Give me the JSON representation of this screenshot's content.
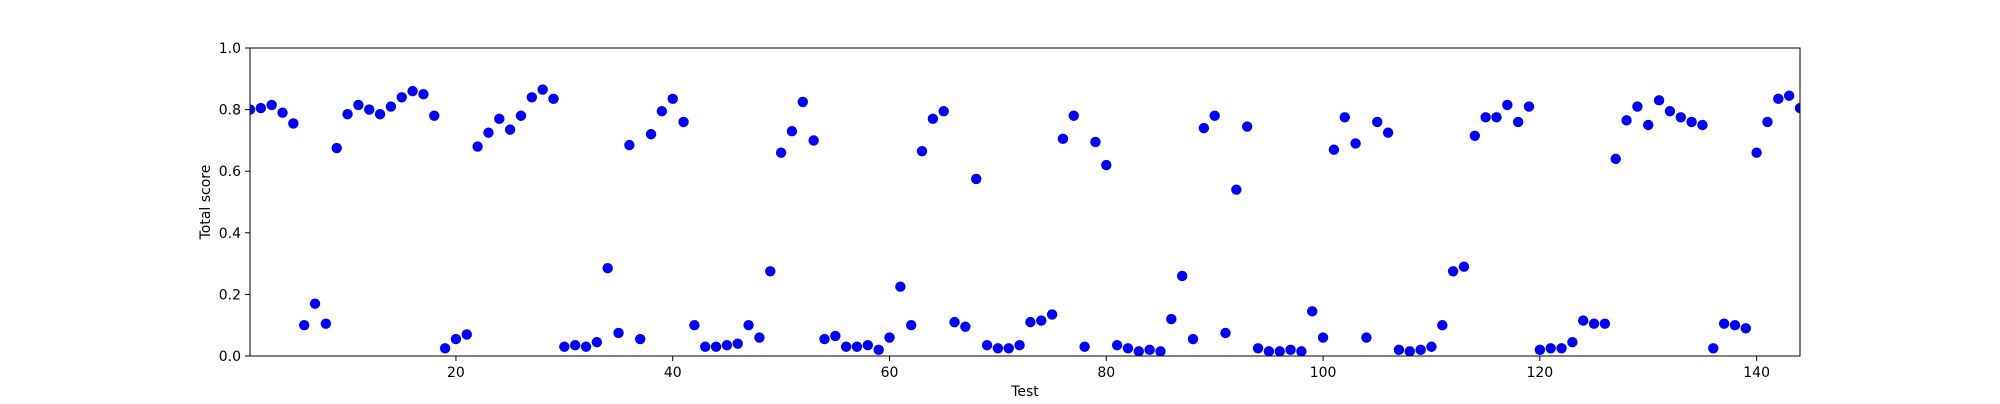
{
  "chart_data": {
    "type": "scatter",
    "title": "",
    "xlabel": "Test",
    "ylabel": "Total score",
    "xlim": [
      1,
      144
    ],
    "ylim": [
      0.0,
      1.0
    ],
    "xticks": [
      20,
      40,
      60,
      80,
      100,
      120,
      140
    ],
    "xtick_labels": [
      "20",
      "40",
      "60",
      "80",
      "100",
      "120",
      "140"
    ],
    "yticks": [
      0.0,
      0.2,
      0.4,
      0.6,
      0.8,
      1.0
    ],
    "ytick_labels": [
      "0.0",
      "0.2",
      "0.4",
      "0.6",
      "0.8",
      "1.0"
    ],
    "grid": false,
    "legend": false,
    "series": [
      {
        "name": "Total score",
        "color": "#0000ff",
        "marker": "circle",
        "x": [
          1,
          2,
          3,
          4,
          5,
          6,
          7,
          8,
          9,
          10,
          11,
          12,
          13,
          14,
          15,
          16,
          17,
          18,
          19,
          20,
          21,
          22,
          23,
          24,
          25,
          26,
          27,
          28,
          29,
          30,
          31,
          32,
          33,
          34,
          35,
          36,
          37,
          38,
          39,
          40,
          41,
          42,
          43,
          44,
          45,
          46,
          47,
          48,
          49,
          50,
          51,
          52,
          53,
          54,
          55,
          56,
          57,
          58,
          59,
          60,
          61,
          62,
          63,
          64,
          65,
          66,
          67,
          68,
          69,
          70,
          71,
          72,
          73,
          74,
          75,
          76,
          77,
          78,
          79,
          80,
          81,
          82,
          83,
          84,
          85,
          86,
          87,
          88,
          89,
          90,
          91,
          92,
          93,
          94,
          95,
          96,
          97,
          98,
          99,
          100,
          101,
          102,
          103,
          104,
          105,
          106,
          107,
          108,
          109,
          110,
          111,
          112,
          113,
          114,
          115,
          116,
          117,
          118,
          119,
          120,
          121,
          122,
          123,
          124,
          125,
          126,
          127,
          128,
          129,
          130,
          131,
          132,
          133,
          134,
          135,
          136,
          137,
          138,
          139,
          140,
          141,
          142,
          143,
          144
        ],
        "y": [
          0.8,
          0.805,
          0.815,
          0.79,
          0.755,
          0.1,
          0.17,
          0.105,
          0.675,
          0.785,
          0.815,
          0.8,
          0.785,
          0.81,
          0.84,
          0.86,
          0.85,
          0.78,
          0.025,
          0.055,
          0.07,
          0.68,
          0.725,
          0.77,
          0.735,
          0.78,
          0.84,
          0.865,
          0.835,
          0.03,
          0.035,
          0.03,
          0.045,
          0.285,
          0.075,
          0.685,
          0.055,
          0.72,
          0.795,
          0.835,
          0.76,
          0.1,
          0.03,
          0.03,
          0.035,
          0.04,
          0.1,
          0.06,
          0.275,
          0.66,
          0.73,
          0.825,
          0.7,
          0.055,
          0.065,
          0.03,
          0.03,
          0.035,
          0.02,
          0.06,
          0.225,
          0.1,
          0.665,
          0.77,
          0.795,
          0.11,
          0.095,
          0.575,
          0.035,
          0.025,
          0.025,
          0.035,
          0.11,
          0.115,
          0.135,
          0.705,
          0.78,
          0.03,
          0.695,
          0.62,
          0.035,
          0.025,
          0.015,
          0.02,
          0.015,
          0.12,
          0.26,
          0.055,
          0.74,
          0.78,
          0.075,
          0.54,
          0.745,
          0.025,
          0.015,
          0.015,
          0.02,
          0.015,
          0.145,
          0.06,
          0.67,
          0.775,
          0.69,
          0.06,
          0.76,
          0.725,
          0.02,
          0.015,
          0.02,
          0.03,
          0.1,
          0.275,
          0.29,
          0.715,
          0.775,
          0.775,
          0.815,
          0.76,
          0.81,
          0.02,
          0.025,
          0.025,
          0.045,
          0.115,
          0.105,
          0.105,
          0.64,
          0.765,
          0.81,
          0.75,
          0.83,
          0.795,
          0.775,
          0.76,
          0.75,
          0.025,
          0.105,
          0.1,
          0.09,
          0.66,
          0.76,
          0.835,
          0.845,
          0.805
        ]
      }
    ]
  }
}
